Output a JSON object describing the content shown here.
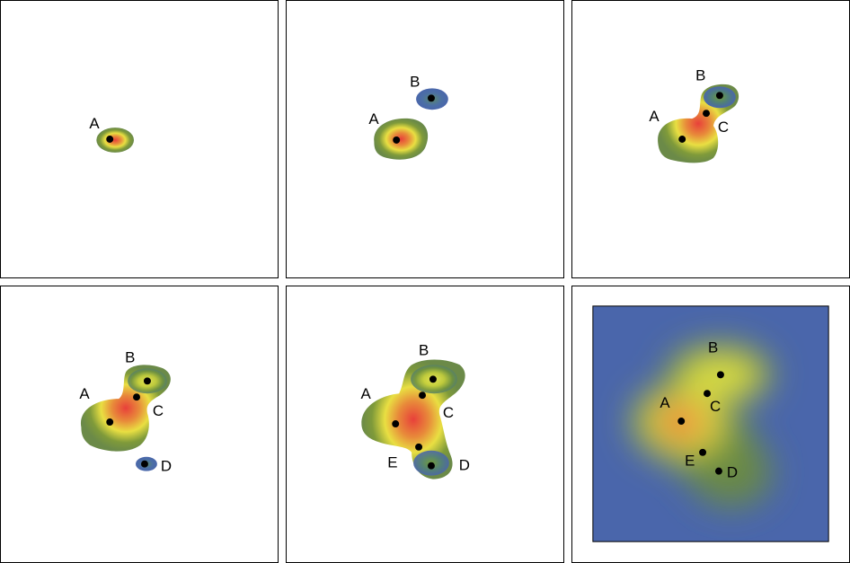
{
  "colors": {
    "low": "#4a66ab",
    "mid": "#7f9a3a",
    "high_yellow": "#f0e83a",
    "peak_red": "#e8403a",
    "point": "#000000",
    "panel_border": "#000000"
  },
  "panels": [
    {
      "points": [
        {
          "label": "A"
        }
      ]
    },
    {
      "points": [
        {
          "label": "A"
        },
        {
          "label": "B"
        }
      ]
    },
    {
      "points": [
        {
          "label": "A"
        },
        {
          "label": "B"
        },
        {
          "label": "C"
        }
      ]
    },
    {
      "points": [
        {
          "label": "A"
        },
        {
          "label": "B"
        },
        {
          "label": "C"
        },
        {
          "label": "D"
        }
      ]
    },
    {
      "points": [
        {
          "label": "A"
        },
        {
          "label": "B"
        },
        {
          "label": "C"
        },
        {
          "label": "D"
        },
        {
          "label": "E"
        }
      ]
    },
    {
      "points": [
        {
          "label": "A"
        },
        {
          "label": "B"
        },
        {
          "label": "C"
        },
        {
          "label": "D"
        },
        {
          "label": "E"
        }
      ]
    }
  ]
}
